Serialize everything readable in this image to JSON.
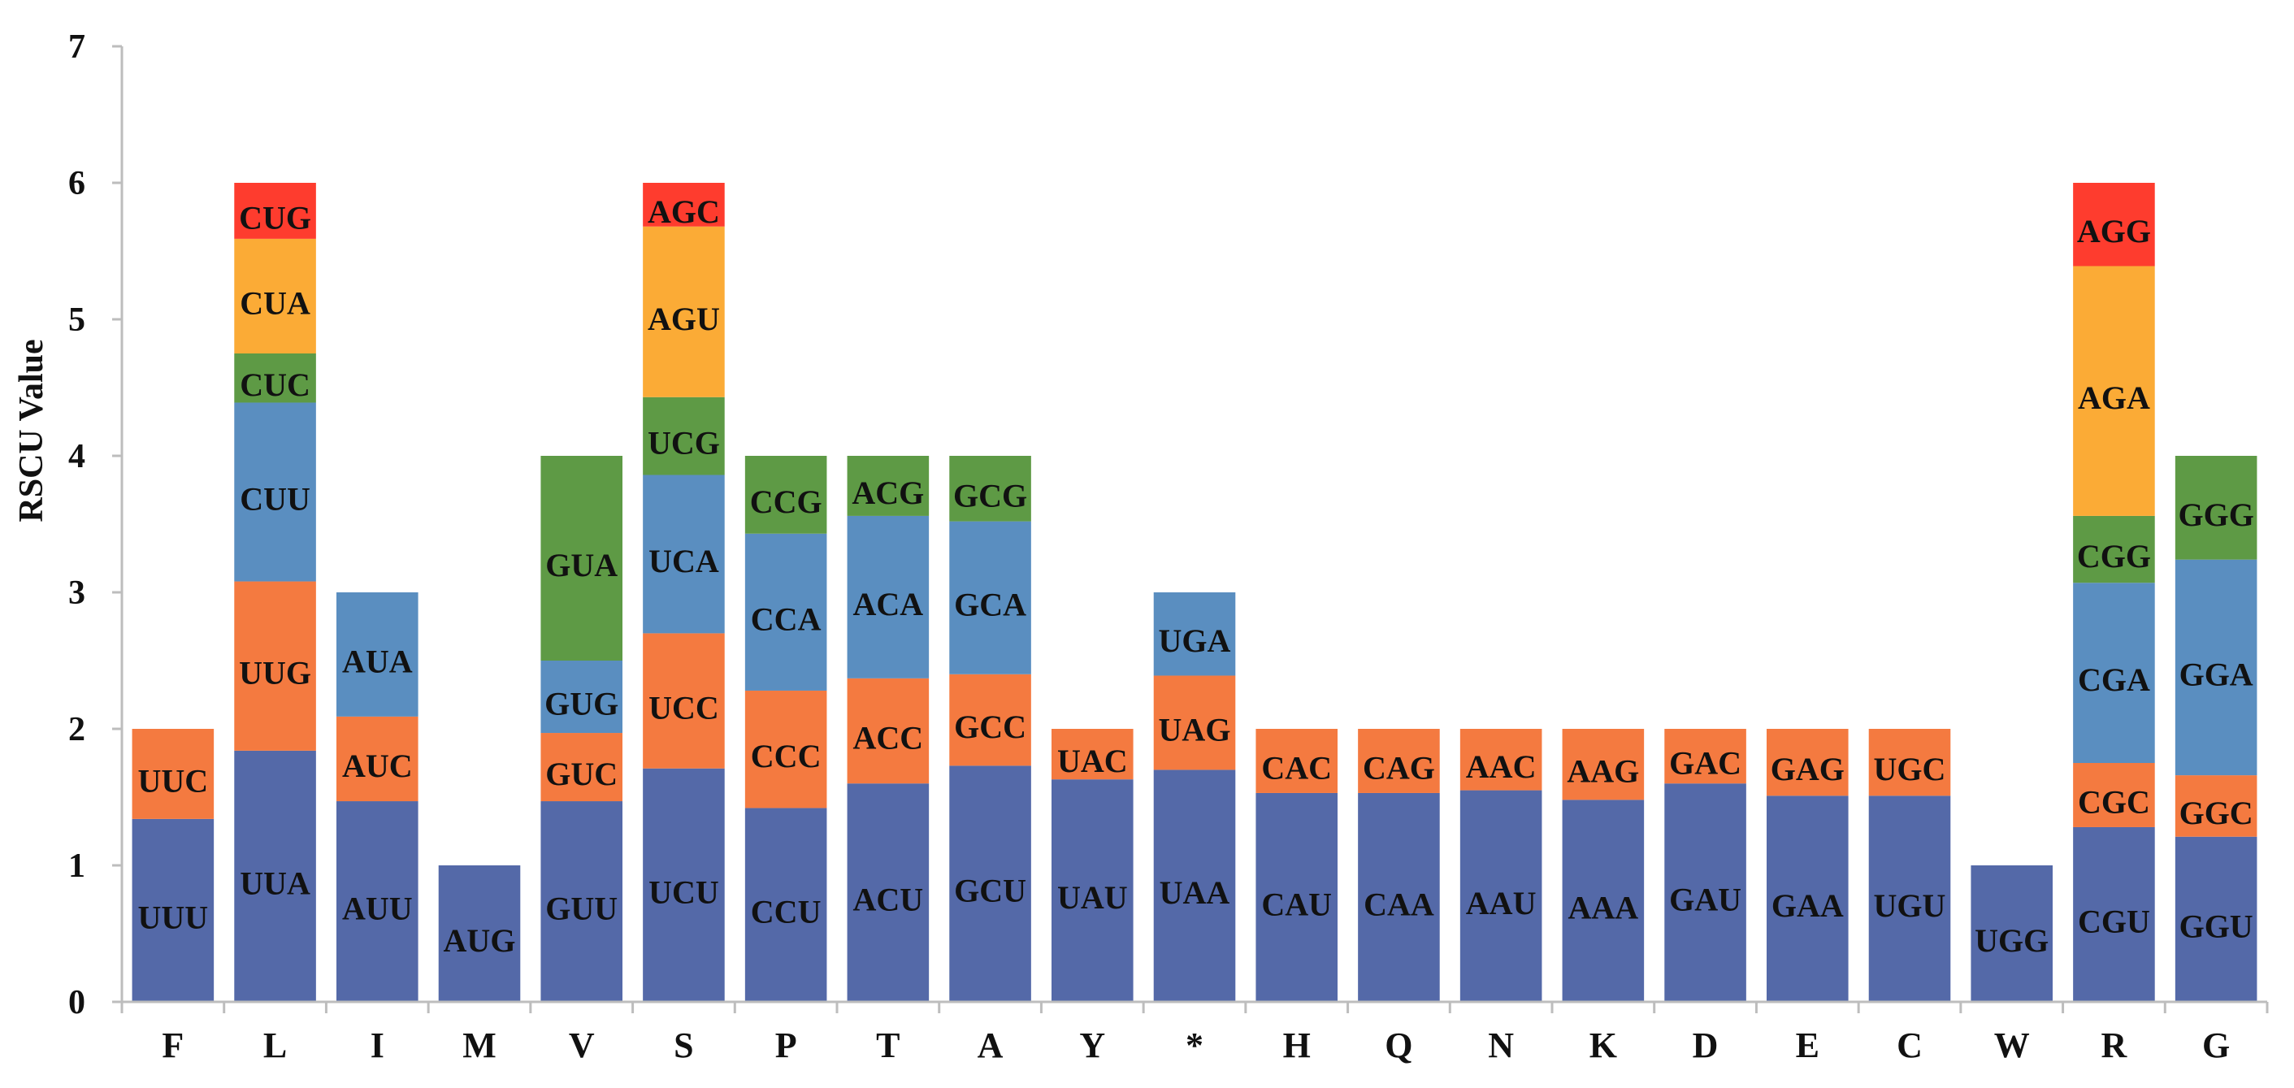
{
  "chart_data": {
    "type": "bar",
    "stacked": true,
    "title": "",
    "xlabel": "",
    "ylabel": "RSCU Value",
    "ylim": [
      0,
      7
    ],
    "yticks": [
      "0",
      "1",
      "2",
      "3",
      "4",
      "5",
      "6",
      "7"
    ],
    "grid": false,
    "legend": "none",
    "segment_colors": [
      "#5469a8",
      "#f47a40",
      "#5a8ec0",
      "#5e9a45",
      "#fbab36",
      "#fe3c2e"
    ],
    "categories": [
      {
        "amino_acid": "F",
        "segments": [
          {
            "codon": "UUU",
            "value": 1.34
          },
          {
            "codon": "UUC",
            "value": 0.66
          }
        ]
      },
      {
        "amino_acid": "L",
        "segments": [
          {
            "codon": "UUA",
            "value": 1.84
          },
          {
            "codon": "UUG",
            "value": 1.24
          },
          {
            "codon": "CUU",
            "value": 1.31
          },
          {
            "codon": "CUC",
            "value": 0.36
          },
          {
            "codon": "CUA",
            "value": 0.84
          },
          {
            "codon": "CUG",
            "value": 0.41
          }
        ]
      },
      {
        "amino_acid": "I",
        "segments": [
          {
            "codon": "AUU",
            "value": 1.47
          },
          {
            "codon": "AUC",
            "value": 0.62
          },
          {
            "codon": "AUA",
            "value": 0.91
          }
        ]
      },
      {
        "amino_acid": "M",
        "segments": [
          {
            "codon": "AUG",
            "value": 1.0
          }
        ]
      },
      {
        "amino_acid": "V",
        "segments": [
          {
            "codon": "GUU",
            "value": 1.47
          },
          {
            "codon": "GUC",
            "value": 0.5
          },
          {
            "codon": "GUG",
            "value": 0.53
          },
          {
            "codon": "GUA",
            "value": 1.5
          }
        ]
      },
      {
        "amino_acid": "S",
        "segments": [
          {
            "codon": "UCU",
            "value": 1.71
          },
          {
            "codon": "UCC",
            "value": 0.99
          },
          {
            "codon": "UCA",
            "value": 1.16
          },
          {
            "codon": "UCG",
            "value": 0.57
          },
          {
            "codon": "AGU",
            "value": 1.25
          },
          {
            "codon": "AGC",
            "value": 0.32
          }
        ]
      },
      {
        "amino_acid": "P",
        "segments": [
          {
            "codon": "CCU",
            "value": 1.42
          },
          {
            "codon": "CCC",
            "value": 0.86
          },
          {
            "codon": "CCA",
            "value": 1.15
          },
          {
            "codon": "CCG",
            "value": 0.57
          }
        ]
      },
      {
        "amino_acid": "T",
        "segments": [
          {
            "codon": "ACU",
            "value": 1.6
          },
          {
            "codon": "ACC",
            "value": 0.77
          },
          {
            "codon": "ACA",
            "value": 1.19
          },
          {
            "codon": "ACG",
            "value": 0.44
          }
        ]
      },
      {
        "amino_acid": "A",
        "segments": [
          {
            "codon": "GCU",
            "value": 1.73
          },
          {
            "codon": "GCC",
            "value": 0.67
          },
          {
            "codon": "GCA",
            "value": 1.12
          },
          {
            "codon": "GCG",
            "value": 0.48
          }
        ]
      },
      {
        "amino_acid": "Y",
        "segments": [
          {
            "codon": "UAU",
            "value": 1.63
          },
          {
            "codon": "UAC",
            "value": 0.37
          }
        ]
      },
      {
        "amino_acid": "*",
        "segments": [
          {
            "codon": "UAA",
            "value": 1.7
          },
          {
            "codon": "UAG",
            "value": 0.69
          },
          {
            "codon": "UGA",
            "value": 0.61
          }
        ]
      },
      {
        "amino_acid": "H",
        "segments": [
          {
            "codon": "CAU",
            "value": 1.53
          },
          {
            "codon": "CAC",
            "value": 0.47
          }
        ]
      },
      {
        "amino_acid": "Q",
        "segments": [
          {
            "codon": "CAA",
            "value": 1.53
          },
          {
            "codon": "CAG",
            "value": 0.47
          }
        ]
      },
      {
        "amino_acid": "N",
        "segments": [
          {
            "codon": "AAU",
            "value": 1.55
          },
          {
            "codon": "AAC",
            "value": 0.45
          }
        ]
      },
      {
        "amino_acid": "K",
        "segments": [
          {
            "codon": "AAA",
            "value": 1.48
          },
          {
            "codon": "AAG",
            "value": 0.52
          }
        ]
      },
      {
        "amino_acid": "D",
        "segments": [
          {
            "codon": "GAU",
            "value": 1.6
          },
          {
            "codon": "GAC",
            "value": 0.4
          }
        ]
      },
      {
        "amino_acid": "E",
        "segments": [
          {
            "codon": "GAA",
            "value": 1.51
          },
          {
            "codon": "GAG",
            "value": 0.49
          }
        ]
      },
      {
        "amino_acid": "C",
        "segments": [
          {
            "codon": "UGU",
            "value": 1.51
          },
          {
            "codon": "UGC",
            "value": 0.49
          }
        ]
      },
      {
        "amino_acid": "W",
        "segments": [
          {
            "codon": "UGG",
            "value": 1.0
          }
        ]
      },
      {
        "amino_acid": "R",
        "segments": [
          {
            "codon": "CGU",
            "value": 1.28
          },
          {
            "codon": "CGC",
            "value": 0.47
          },
          {
            "codon": "CGA",
            "value": 1.32
          },
          {
            "codon": "CGG",
            "value": 0.49
          },
          {
            "codon": "AGA",
            "value": 1.83
          },
          {
            "codon": "AGG",
            "value": 0.61
          }
        ]
      },
      {
        "amino_acid": "G",
        "segments": [
          {
            "codon": "GGU",
            "value": 1.21
          },
          {
            "codon": "GGC",
            "value": 0.45
          },
          {
            "codon": "GGA",
            "value": 1.58
          },
          {
            "codon": "GGG",
            "value": 0.76
          }
        ]
      }
    ]
  }
}
